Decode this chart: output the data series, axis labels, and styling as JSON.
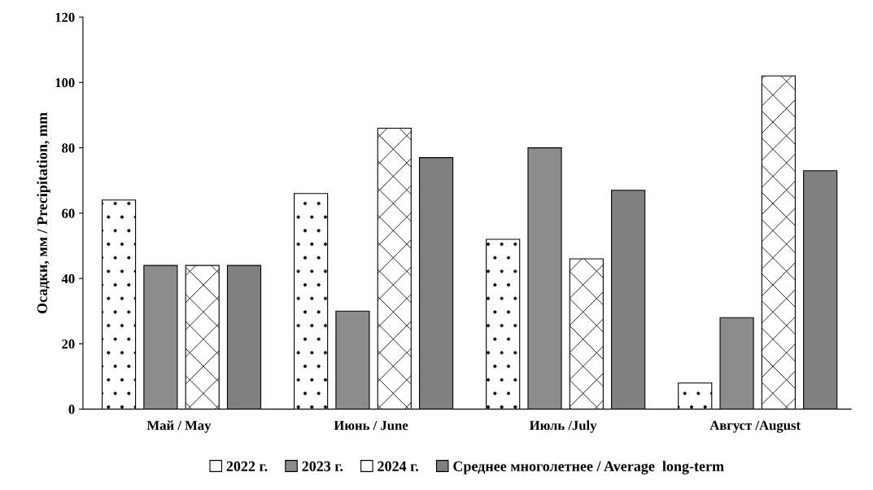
{
  "chart_data": {
    "type": "bar",
    "ylabel": "Осадки, мм / Precipitation, mm",
    "categories": [
      "Май / May",
      "Июнь / June",
      "Июль /July",
      "Август /August"
    ],
    "series": [
      {
        "name": "2022 г.",
        "color": "#ffffff",
        "values": [
          64,
          66,
          52,
          8
        ]
      },
      {
        "name": "2023 г.",
        "color": "#8c8c8c",
        "values": [
          44,
          30,
          80,
          28
        ]
      },
      {
        "name": "2024 г.",
        "color": "#ffffff",
        "values": [
          44,
          86,
          46,
          102
        ]
      },
      {
        "name": "Среднее многолетнее / Average  long-term",
        "color": "#808080",
        "values": [
          44,
          77,
          67,
          73
        ]
      }
    ],
    "ylim": [
      0,
      120
    ],
    "yticks": [
      0,
      20,
      40,
      60,
      80,
      100,
      120
    ],
    "grid": false,
    "legend": "bottom"
  }
}
